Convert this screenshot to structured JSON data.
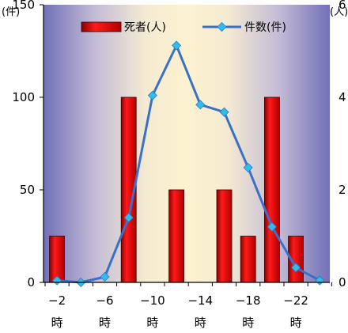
{
  "chart_data": {
    "type": "bar",
    "y_unit_left": "(件)",
    "y_unit_right": "(人)",
    "x_tick_labels": [
      {
        "top": "−2",
        "bottom": "時"
      },
      {
        "top": "−6",
        "bottom": "時"
      },
      {
        "top": "−10",
        "bottom": "時"
      },
      {
        "top": "−14",
        "bottom": "時"
      },
      {
        "top": "−18",
        "bottom": "時"
      },
      {
        "top": "−22",
        "bottom": "時"
      }
    ],
    "ylim_left": [
      0,
      150
    ],
    "yticks_left": [
      "0",
      "50",
      "100",
      "150"
    ],
    "ylim_right": [
      0,
      6
    ],
    "yticks_right": [
      "0",
      "2",
      "4",
      "6"
    ],
    "grid": false,
    "legend_position": "top",
    "series": [
      {
        "name": "死者(人)",
        "type": "bar",
        "axis": "right",
        "color": "#e00000",
        "values": [
          1,
          0,
          0,
          4,
          0,
          2,
          0,
          2,
          1,
          4,
          1,
          0
        ]
      },
      {
        "name": "件数(件)",
        "type": "line",
        "axis": "left",
        "color": "#3a70c8",
        "marker_color": "#33bbee",
        "values": [
          1,
          0,
          3,
          35,
          101,
          128,
          96,
          92,
          62,
          30,
          8,
          1
        ]
      }
    ]
  }
}
